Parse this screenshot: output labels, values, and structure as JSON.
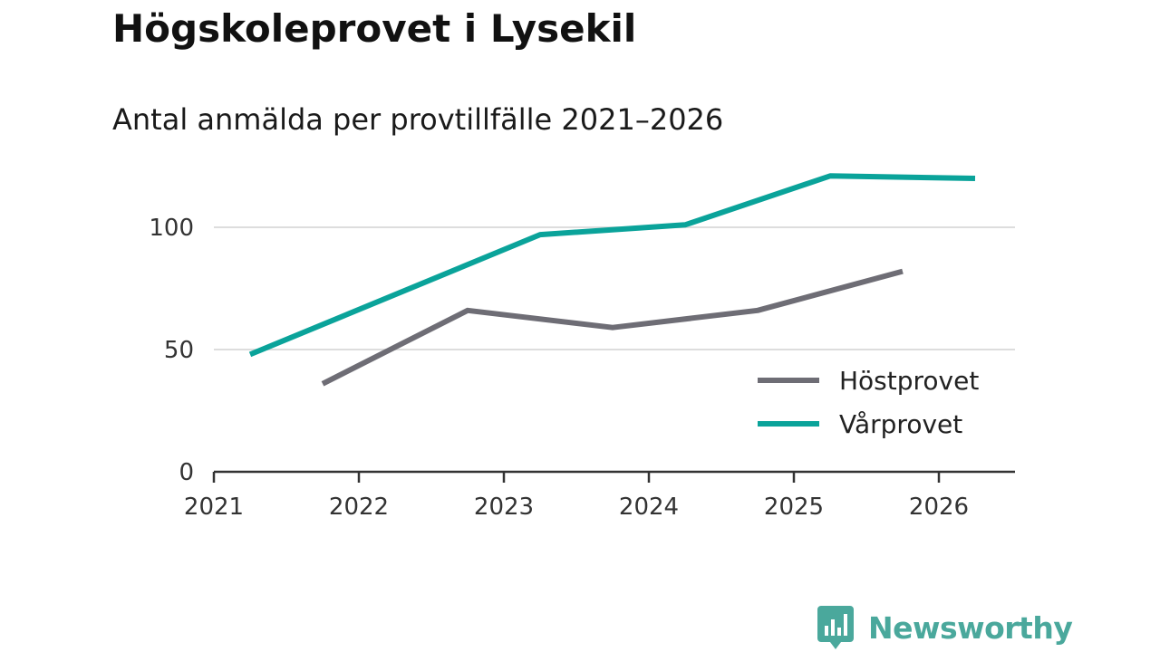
{
  "title": "Högskoleprovet i Lysekil",
  "subtitle": "Antal anmälda per provtillfälle 2021–2026",
  "brand": {
    "name": "Newsworthy",
    "color": "#4aa89c",
    "icon": "newsworthy-logo-icon"
  },
  "chart_data": {
    "type": "line",
    "title": "Högskoleprovet i Lysekil",
    "subtitle": "Antal anmälda per provtillfälle 2021–2026",
    "xlabel": "",
    "ylabel": "",
    "x_ticks": [
      "2021",
      "2022",
      "2023",
      "2024",
      "2025",
      "2026"
    ],
    "y_ticks": [
      0,
      50,
      100
    ],
    "ylim": [
      0,
      130
    ],
    "xlim": [
      2021,
      2026.55
    ],
    "grid": true,
    "legend_position": "bottom-right",
    "series": [
      {
        "name": "Höstprovet",
        "color": "#6e6d75",
        "x": [
          2021.75,
          2022.75,
          2023.75,
          2024.75,
          2025.75
        ],
        "values": [
          36,
          66,
          59,
          66,
          82
        ]
      },
      {
        "name": "Vårprovet",
        "color": "#0aa39a",
        "x": [
          2021.25,
          2023.25,
          2024.25,
          2025.25,
          2026.25
        ],
        "values": [
          48,
          97,
          101,
          121,
          120
        ]
      }
    ]
  }
}
